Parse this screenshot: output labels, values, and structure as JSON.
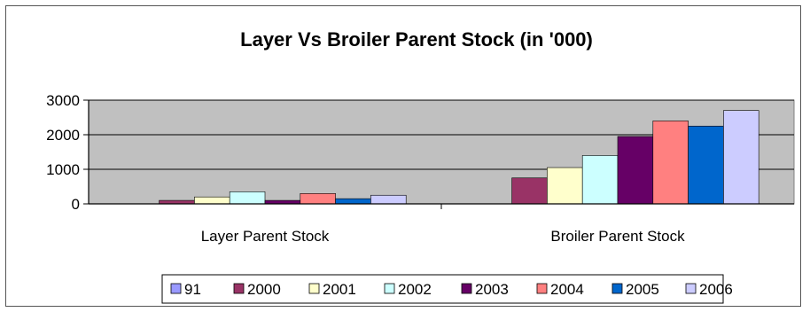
{
  "chart_data": {
    "type": "bar",
    "title": "Layer Vs Broiler Parent Stock (in '000)",
    "xlabel": "",
    "ylabel": "",
    "categories": [
      "Layer Parent Stock",
      "Broiler Parent Stock"
    ],
    "ylim": [
      0,
      3000
    ],
    "yticks": [
      "0",
      "1000",
      "2000",
      "3000"
    ],
    "grid": true,
    "legend_position": "bottom",
    "plot_background": "#c0c0c0",
    "series": [
      {
        "name": "91",
        "color": "#9999ff",
        "values": [
          0,
          0
        ]
      },
      {
        "name": "2000",
        "color": "#993366",
        "values": [
          100,
          750
        ]
      },
      {
        "name": "2001",
        "color": "#ffffcc",
        "values": [
          200,
          1050
        ]
      },
      {
        "name": "2002",
        "color": "#ccffff",
        "values": [
          350,
          1400
        ]
      },
      {
        "name": "2003",
        "color": "#660066",
        "values": [
          100,
          1950
        ]
      },
      {
        "name": "2004",
        "color": "#ff8080",
        "values": [
          300,
          2400
        ]
      },
      {
        "name": "2005",
        "color": "#0066cc",
        "values": [
          150,
          2250
        ]
      },
      {
        "name": "2006",
        "color": "#ccccff",
        "values": [
          250,
          2700
        ]
      }
    ]
  }
}
